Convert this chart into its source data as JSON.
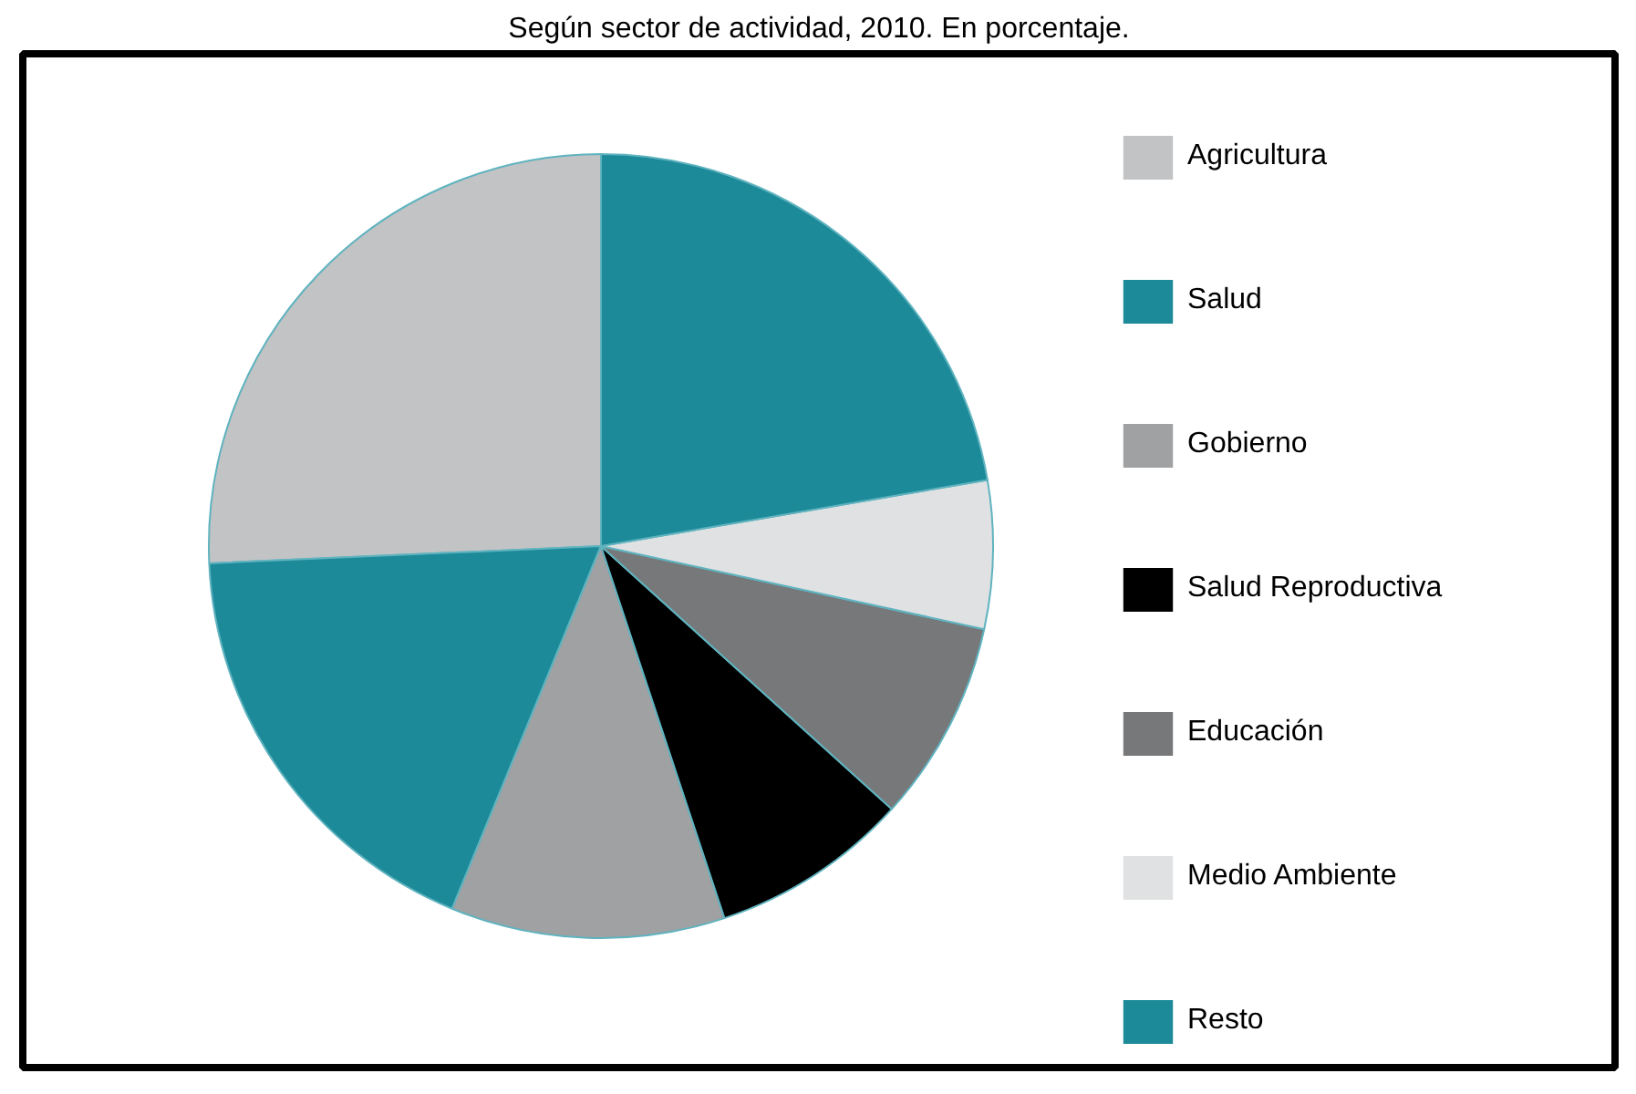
{
  "chart_data": {
    "type": "pie",
    "title": "Según sector de actividad, 2010. En porcentaje.",
    "categories": [
      "Agricultura",
      "Salud",
      "Gobierno",
      "Salud Reproductiva",
      "Educación",
      "Medio Ambiente",
      "Resto"
    ],
    "values": [
      25.7,
      18.1,
      11.3,
      8.2,
      8.3,
      6.1,
      22.3
    ],
    "colors": [
      "#c2c3c5",
      "#1d8a99",
      "#a0a1a3",
      "#000000",
      "#777879",
      "#e0e1e2",
      "#1d8a99"
    ],
    "legend": "right"
  }
}
